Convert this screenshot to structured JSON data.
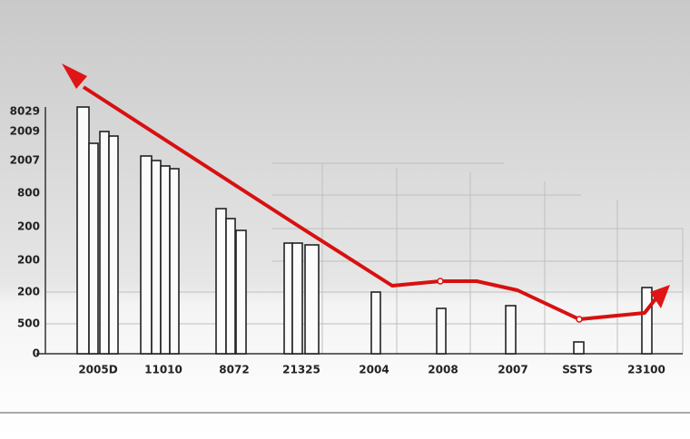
{
  "y_axis_labels": [
    "8029",
    "2009",
    "2007",
    "800",
    "200",
    "200",
    "200",
    "500",
    "0"
  ],
  "x_axis_labels": [
    "2005D",
    "11010",
    "8072",
    "21325",
    "2004",
    "2008",
    "2007",
    "SSTS",
    "23100"
  ]
}
